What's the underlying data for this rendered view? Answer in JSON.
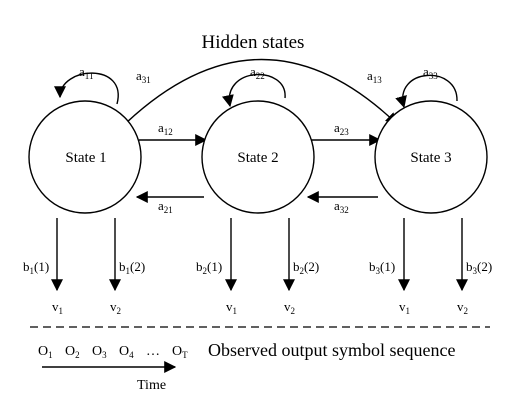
{
  "title": "Hidden states",
  "states": [
    {
      "label": "State 1"
    },
    {
      "label": "State 2"
    },
    {
      "label": "State 3"
    }
  ],
  "transitions": {
    "a11": {
      "base": "a",
      "sub": "11"
    },
    "a22": {
      "base": "a",
      "sub": "22"
    },
    "a33": {
      "base": "a",
      "sub": "33"
    },
    "a12": {
      "base": "a",
      "sub": "12"
    },
    "a21": {
      "base": "a",
      "sub": "21"
    },
    "a23": {
      "base": "a",
      "sub": "23"
    },
    "a32": {
      "base": "a",
      "sub": "32"
    },
    "a31": {
      "base": "a",
      "sub": "31"
    },
    "a13": {
      "base": "a",
      "sub": "13"
    }
  },
  "emissions": [
    {
      "base": "b",
      "sub": "1",
      "arg": "(1)",
      "output_base": "v",
      "output_sub": "1"
    },
    {
      "base": "b",
      "sub": "1",
      "arg": "(2)",
      "output_base": "v",
      "output_sub": "2"
    },
    {
      "base": "b",
      "sub": "2",
      "arg": "(1)",
      "output_base": "v",
      "output_sub": "1"
    },
    {
      "base": "b",
      "sub": "2",
      "arg": "(2)",
      "output_base": "v",
      "output_sub": "2"
    },
    {
      "base": "b",
      "sub": "3",
      "arg": "(1)",
      "output_base": "v",
      "output_sub": "1"
    },
    {
      "base": "b",
      "sub": "3",
      "arg": "(2)",
      "output_base": "v",
      "output_sub": "2"
    }
  ],
  "sequence": [
    {
      "base": "O",
      "sub": "1"
    },
    {
      "base": "O",
      "sub": "2"
    },
    {
      "base": "O",
      "sub": "3"
    },
    {
      "base": "O",
      "sub": "4"
    },
    {
      "base": "…",
      "sub": ""
    },
    {
      "base": "O",
      "sub": "T"
    }
  ],
  "sequence_caption": "Observed output symbol sequence",
  "time_label": "Time"
}
